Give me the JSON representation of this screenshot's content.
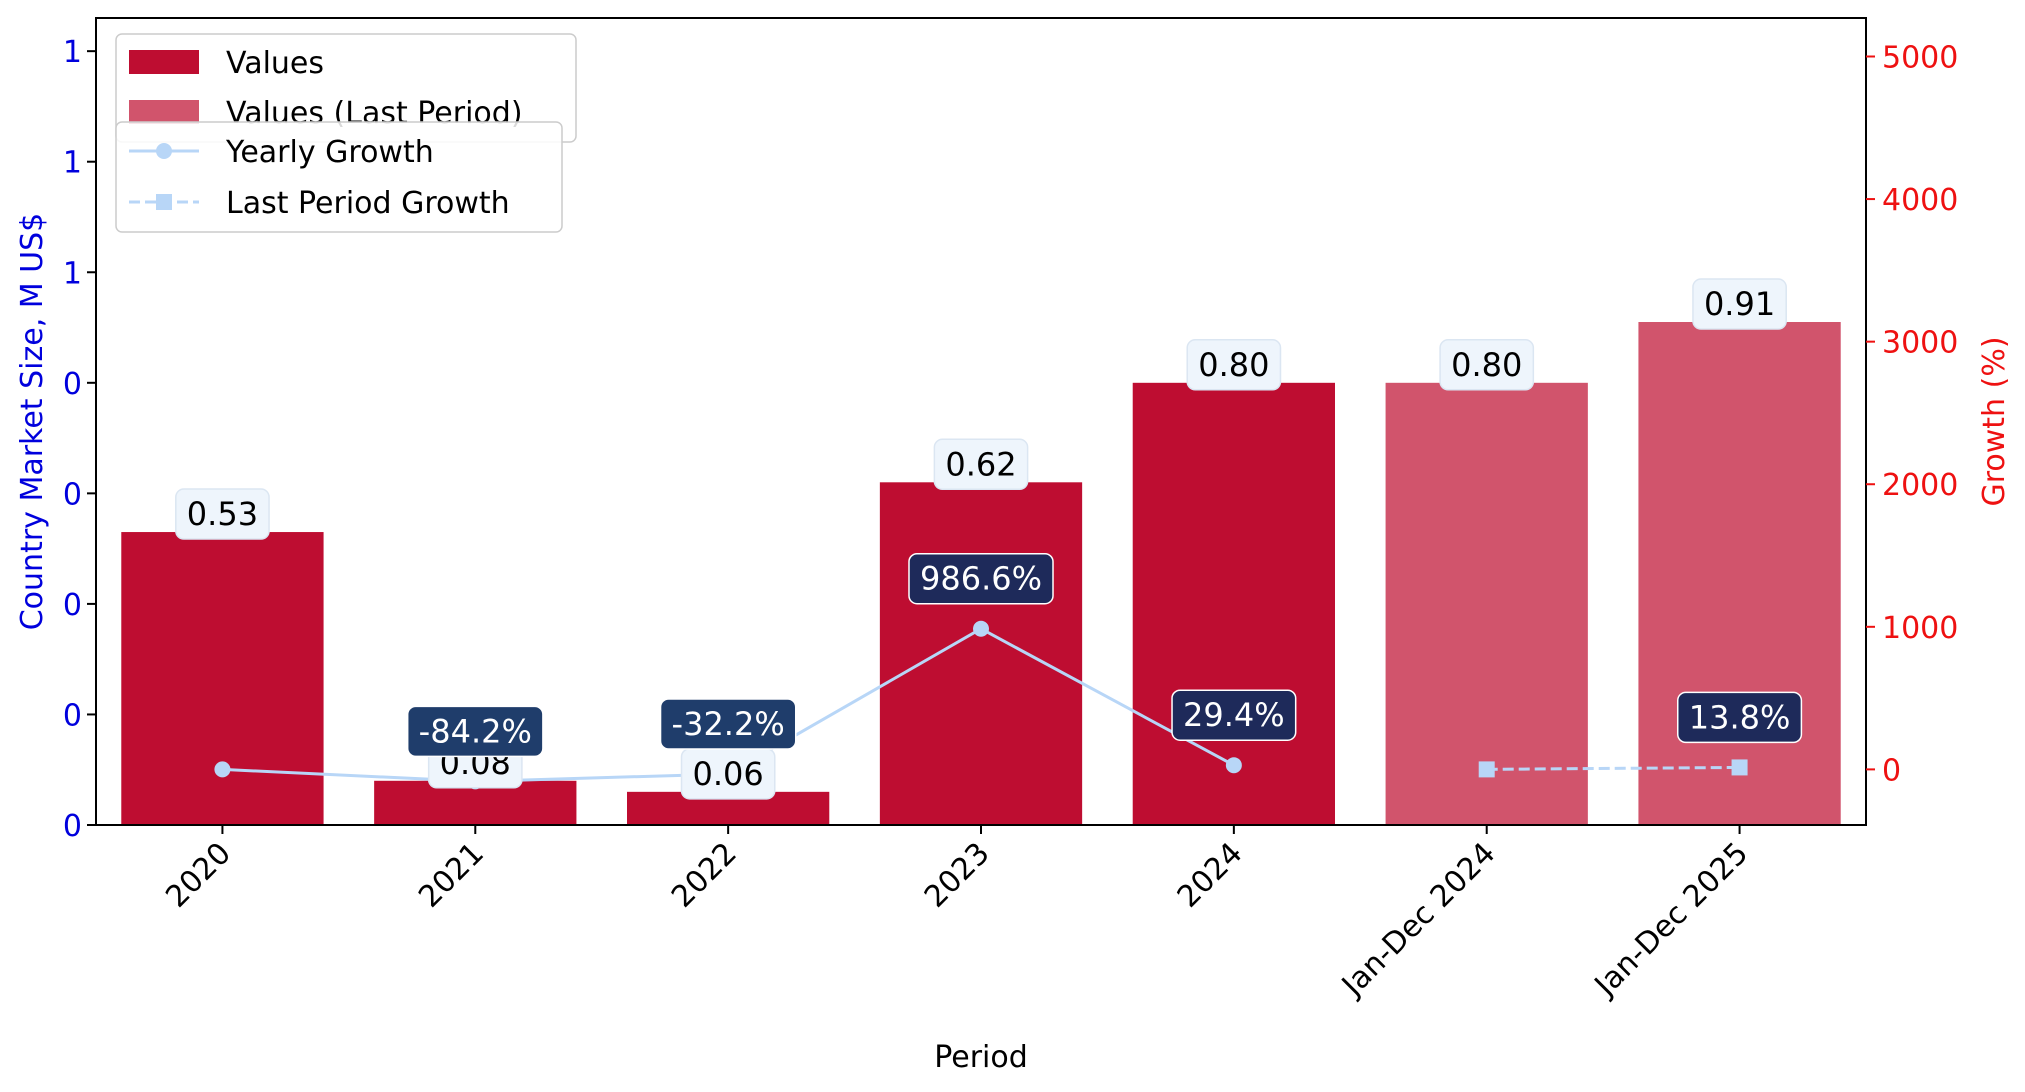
{
  "chart_data": {
    "type": "bar",
    "xlabel": "Period",
    "ylabel": "Country Market Size, M US$",
    "y2label": "Growth (%)",
    "categories": [
      "2020",
      "2021",
      "2022",
      "2023",
      "2024",
      "Jan-Dec 2024",
      "Jan-Dec 2025"
    ],
    "y_tick_labels": [
      "0",
      "0",
      "0",
      "0",
      "0",
      "1",
      "1",
      "1"
    ],
    "y_ticks": [
      0.0,
      0.2,
      0.4,
      0.6,
      0.8,
      1.0,
      1.2,
      1.4
    ],
    "ylim": [
      0,
      1.46
    ],
    "y2_ticks": [
      0,
      1000,
      2000,
      3000,
      4000,
      5000
    ],
    "y2_tick_labels": [
      "0",
      "1000",
      "2000",
      "3000",
      "4000",
      "5000"
    ],
    "y2lim": [
      -390,
      5270
    ],
    "grid": false,
    "legend_placement": "top-left",
    "series": [
      {
        "name": "Values",
        "kind": "bar",
        "color": "#be0d31",
        "values": [
          0.53,
          0.08,
          0.06,
          0.62,
          0.8,
          null,
          null
        ],
        "labels": [
          "0.53",
          "0.08",
          "0.06",
          "0.62",
          "0.80",
          null,
          null
        ]
      },
      {
        "name": "Values (Last Period)",
        "kind": "bar",
        "color": "#d1546c",
        "values": [
          null,
          null,
          null,
          null,
          null,
          0.8,
          0.91
        ],
        "labels": [
          null,
          null,
          null,
          null,
          null,
          "0.80",
          "0.91"
        ]
      },
      {
        "name": "Yearly Growth",
        "kind": "line",
        "axis": "right",
        "color": "#b8d6f7",
        "marker": "circle",
        "values": [
          0,
          -84.2,
          -32.2,
          986.6,
          29.4,
          null,
          null
        ],
        "labels": [
          null,
          "-84.2%",
          "-32.2%",
          "986.6%",
          "29.4%",
          null,
          null
        ]
      },
      {
        "name": "Last Period Growth",
        "kind": "line",
        "axis": "right",
        "linestyle": "dashed",
        "color": "#b8d6f7",
        "marker": "square",
        "values": [
          null,
          null,
          null,
          null,
          null,
          0,
          13.8
        ],
        "labels": [
          null,
          null,
          null,
          null,
          null,
          null,
          "13.8%"
        ]
      }
    ],
    "colors": {
      "left_axis": "#0000dd",
      "right_axis": "#ee1111",
      "value_label_bg": "#eef5fc",
      "growth_label_2021_2022_bg": "#1f3d6b",
      "growth_label_bg": "#1e2a5a"
    }
  }
}
